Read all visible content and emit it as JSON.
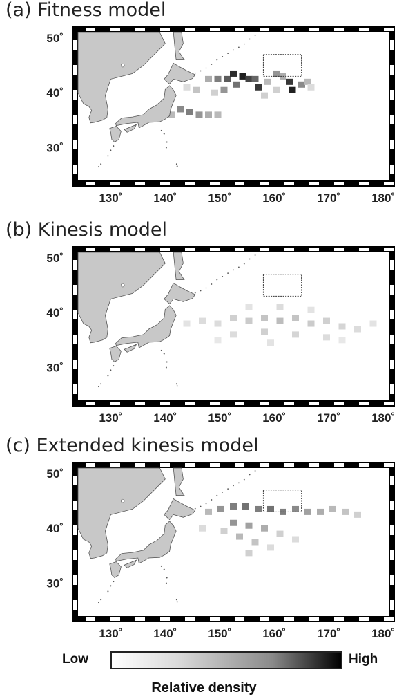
{
  "panels": [
    {
      "title": "(a) Fitness model",
      "density_cells": [
        [
          0.42,
          42.5,
          0.35
        ],
        [
          0.45,
          42.5,
          0.55
        ],
        [
          0.48,
          42.5,
          0.7
        ],
        [
          0.5,
          43.5,
          0.9
        ],
        [
          0.53,
          43,
          0.95
        ],
        [
          0.51,
          41.5,
          0.6
        ],
        [
          0.47,
          40.5,
          0.45
        ],
        [
          0.55,
          42.5,
          0.8
        ],
        [
          0.57,
          42.5,
          0.65
        ],
        [
          0.58,
          41,
          0.85
        ],
        [
          0.61,
          42,
          0.3
        ],
        [
          0.64,
          43.5,
          0.45
        ],
        [
          0.66,
          43,
          0.35
        ],
        [
          0.68,
          42,
          0.85
        ],
        [
          0.69,
          40.5,
          0.95
        ],
        [
          0.72,
          41.5,
          0.5
        ],
        [
          0.74,
          42,
          0.3
        ],
        [
          0.38,
          40.5,
          0.25
        ],
        [
          0.35,
          41,
          0.15
        ],
        [
          0.44,
          40,
          0.2
        ],
        [
          0.33,
          37,
          0.5
        ],
        [
          0.36,
          36.5,
          0.55
        ],
        [
          0.39,
          36,
          0.45
        ],
        [
          0.42,
          36,
          0.35
        ],
        [
          0.45,
          36,
          0.3
        ],
        [
          0.3,
          36,
          0.3
        ],
        [
          0.6,
          39.5,
          0.2
        ],
        [
          0.64,
          40.5,
          0.2
        ],
        [
          0.75,
          41,
          0.15
        ]
      ]
    },
    {
      "title": "(b) Kinesis model",
      "density_cells": [
        [
          0.35,
          38,
          0.12
        ],
        [
          0.4,
          38.5,
          0.15
        ],
        [
          0.45,
          38,
          0.15
        ],
        [
          0.5,
          39,
          0.2
        ],
        [
          0.55,
          38.5,
          0.22
        ],
        [
          0.6,
          39,
          0.25
        ],
        [
          0.65,
          38.5,
          0.28
        ],
        [
          0.7,
          39,
          0.25
        ],
        [
          0.75,
          38,
          0.22
        ],
        [
          0.8,
          38.5,
          0.2
        ],
        [
          0.85,
          37.5,
          0.18
        ],
        [
          0.9,
          37,
          0.15
        ],
        [
          0.95,
          38,
          0.12
        ],
        [
          0.5,
          36,
          0.15
        ],
        [
          0.6,
          36.5,
          0.2
        ],
        [
          0.7,
          36,
          0.18
        ],
        [
          0.8,
          35.5,
          0.15
        ],
        [
          0.55,
          41,
          0.12
        ],
        [
          0.65,
          41,
          0.15
        ],
        [
          0.75,
          40.5,
          0.12
        ],
        [
          0.45,
          35,
          0.1
        ],
        [
          0.62,
          34.5,
          0.12
        ],
        [
          0.85,
          35,
          0.1
        ]
      ]
    },
    {
      "title": "(c) Extended kinesis model",
      "density_cells": [
        [
          0.42,
          43,
          0.3
        ],
        [
          0.46,
          43.5,
          0.45
        ],
        [
          0.5,
          44,
          0.55
        ],
        [
          0.54,
          44,
          0.6
        ],
        [
          0.58,
          43.5,
          0.55
        ],
        [
          0.62,
          43.5,
          0.6
        ],
        [
          0.66,
          43,
          0.55
        ],
        [
          0.7,
          43.5,
          0.5
        ],
        [
          0.74,
          43,
          0.4
        ],
        [
          0.78,
          43,
          0.35
        ],
        [
          0.82,
          43.5,
          0.3
        ],
        [
          0.86,
          43,
          0.25
        ],
        [
          0.9,
          42.5,
          0.2
        ],
        [
          0.5,
          41,
          0.45
        ],
        [
          0.55,
          40.5,
          0.4
        ],
        [
          0.6,
          40,
          0.35
        ],
        [
          0.52,
          38.5,
          0.3
        ],
        [
          0.57,
          37.5,
          0.25
        ],
        [
          0.55,
          35.5,
          0.2
        ],
        [
          0.47,
          39.5,
          0.2
        ],
        [
          0.65,
          39,
          0.2
        ],
        [
          0.7,
          38,
          0.15
        ],
        [
          0.4,
          40,
          0.15
        ],
        [
          0.62,
          36.5,
          0.15
        ]
      ]
    }
  ],
  "axes": {
    "x_ticks": [
      "130˚",
      "140˚",
      "150˚",
      "160˚",
      "170˚",
      "180˚"
    ],
    "y_ticks": [
      "50˚",
      "40˚",
      "30˚"
    ]
  },
  "legend": {
    "low_label": "Low",
    "high_label": "High",
    "title": "Relative density"
  },
  "colors": {
    "land": "#c8c8c8",
    "coast": "#555555",
    "frame": "#000000",
    "box": "#333333"
  }
}
